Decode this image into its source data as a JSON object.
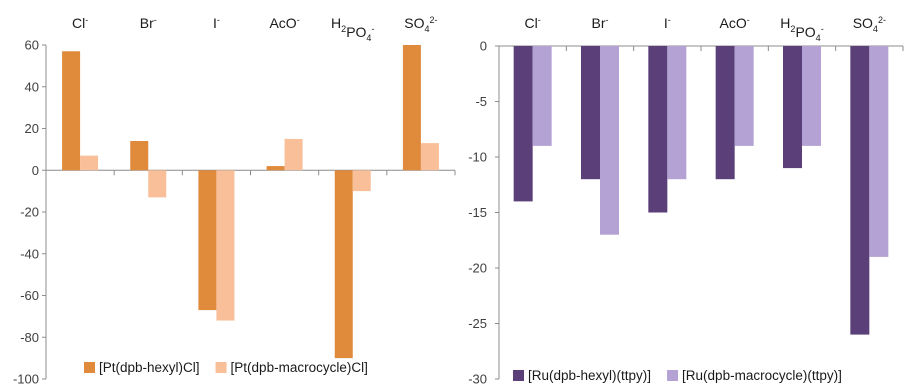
{
  "chart_data": [
    {
      "type": "bar",
      "categories": [
        {
          "base": "Cl",
          "sup": "-"
        },
        {
          "base": "Br",
          "sup": "-"
        },
        {
          "base": "I",
          "sup": "-"
        },
        {
          "base": "AcO",
          "sup": "-"
        },
        {
          "base": "H",
          "sub1": "2",
          "mid": "PO",
          "sub2": "4",
          "sup": "-"
        },
        {
          "base": "SO",
          "sub2": "4",
          "sup": "2-"
        }
      ],
      "series": [
        {
          "name": "[Pt(dpb-hexyl)Cl]",
          "color": "#E08A3C",
          "values": [
            57,
            14,
            -67,
            2,
            -90,
            60
          ]
        },
        {
          "name": "[Pt(dpb-macrocycle)Cl]",
          "color": "#F9BF98",
          "values": [
            7,
            -13,
            -72,
            15,
            -10,
            13
          ]
        }
      ],
      "ylim": [
        -100,
        60
      ],
      "yticks": [
        60,
        40,
        20,
        0,
        -20,
        -40,
        -60,
        -80,
        -100
      ],
      "grid": false,
      "legend": "bottom"
    },
    {
      "type": "bar",
      "categories": [
        {
          "base": "Cl",
          "sup": "-"
        },
        {
          "base": "Br",
          "sup": "-"
        },
        {
          "base": "I",
          "sup": "-"
        },
        {
          "base": "AcO",
          "sup": "-"
        },
        {
          "base": "H",
          "sub1": "2",
          "mid": "PO",
          "sub2": "4",
          "sup": "-"
        },
        {
          "base": "SO",
          "sub2": "4",
          "sup": "2-"
        }
      ],
      "series": [
        {
          "name": "[Ru(dpb-hexyl)(ttpy)]",
          "color": "#5B3F78",
          "values": [
            -14,
            -12,
            -15,
            -12,
            -11,
            -26
          ]
        },
        {
          "name": "[Ru(dpb-macrocycle)(ttpy)]",
          "color": "#B3A2D3",
          "values": [
            -9,
            -17,
            -12,
            -9,
            -9,
            -19
          ]
        }
      ],
      "ylim": [
        -30,
        0
      ],
      "yticks": [
        0,
        -5,
        -10,
        -15,
        -20,
        -25,
        -30
      ],
      "grid": false,
      "legend": "bottom"
    }
  ]
}
